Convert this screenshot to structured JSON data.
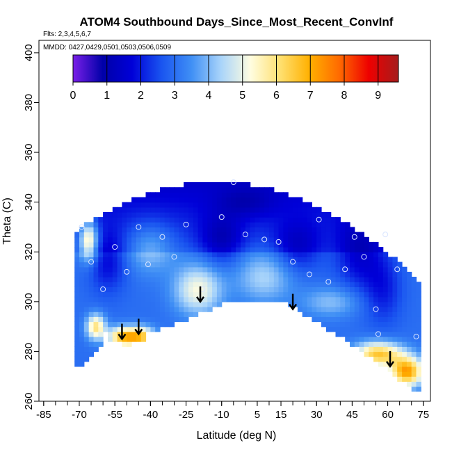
{
  "chart_data": {
    "type": "heatmap",
    "title": "ATOM4 Southbound Days_Since_Most_Recent_ConvInf",
    "flights": "Flts: 2,3,4,5,6,7",
    "mmdd": "MMDD: 0427,0429,0501,0503,0506,0509",
    "xlabel": "Latitude (deg N)",
    "ylabel": "Theta (C)",
    "xlim": [
      -87,
      78
    ],
    "ylim": [
      260,
      405
    ],
    "x_ticks": [
      -85,
      -70,
      -55,
      -40,
      -25,
      -10,
      5,
      15,
      30,
      45,
      60,
      75
    ],
    "x_minor_step": 5,
    "y_ticks": [
      260,
      280,
      300,
      320,
      340,
      360,
      380,
      400
    ],
    "colorbar": {
      "range": [
        0,
        9.6
      ],
      "ticks": [
        0,
        1,
        2,
        3,
        4,
        5,
        6,
        7,
        8,
        9
      ],
      "colors": [
        "#7a1fe8",
        "#0000a8",
        "#0000d8",
        "#1a55f0",
        "#3f8ff5",
        "#a9d4fa",
        "#fffde0",
        "#ffe070",
        "#ffb000",
        "#ff6a00",
        "#ee0000",
        "#a51d1d"
      ]
    },
    "profile_starts": [
      {
        "lat": -69,
        "theta": 330
      },
      {
        "lat": -65,
        "theta": 316
      },
      {
        "lat": -60,
        "theta": 305
      },
      {
        "lat": -55,
        "theta": 322
      },
      {
        "lat": -50,
        "theta": 312
      },
      {
        "lat": -45,
        "theta": 330
      },
      {
        "lat": -41,
        "theta": 315
      },
      {
        "lat": -35,
        "theta": 326
      },
      {
        "lat": -30,
        "theta": 318
      },
      {
        "lat": -25,
        "theta": 331
      },
      {
        "lat": -18,
        "theta": 305
      },
      {
        "lat": -10,
        "theta": 334
      },
      {
        "lat": -5,
        "theta": 348
      },
      {
        "lat": 0,
        "theta": 327
      },
      {
        "lat": 8,
        "theta": 325
      },
      {
        "lat": 14,
        "theta": 324
      },
      {
        "lat": 20,
        "theta": 316
      },
      {
        "lat": 27,
        "theta": 311
      },
      {
        "lat": 31,
        "theta": 333
      },
      {
        "lat": 35,
        "theta": 308
      },
      {
        "lat": 42,
        "theta": 313
      },
      {
        "lat": 46,
        "theta": 326
      },
      {
        "lat": 50,
        "theta": 318
      },
      {
        "lat": 55,
        "theta": 297
      },
      {
        "lat": 56,
        "theta": 287
      },
      {
        "lat": 59,
        "theta": 327
      },
      {
        "lat": 64,
        "theta": 313
      },
      {
        "lat": 72,
        "theta": 286
      }
    ],
    "arrows": [
      {
        "lat": -52,
        "theta": 285
      },
      {
        "lat": -45,
        "theta": 287
      },
      {
        "lat": -19,
        "theta": 300
      },
      {
        "lat": 20,
        "theta": 297
      },
      {
        "lat": 61,
        "theta": 274
      }
    ]
  }
}
